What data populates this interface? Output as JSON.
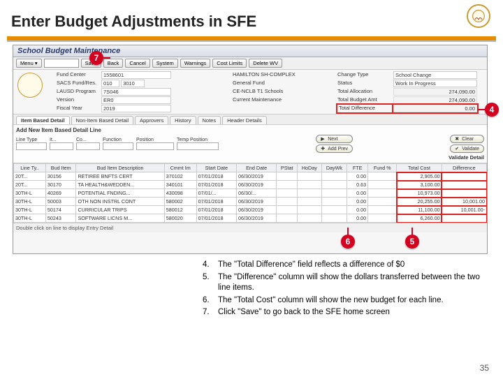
{
  "page": {
    "title": "Enter Budget Adjustments in SFE",
    "number": "35"
  },
  "accent_colors": {
    "orange": "#e68a00",
    "red": "#d40020",
    "logo_border": "#c99a2e"
  },
  "app": {
    "window_title": "School Budget Maintenance",
    "toolbar": {
      "menu": "Menu ▾",
      "search_value": "",
      "save": "Save",
      "back": "Back",
      "cancel": "Cancel",
      "system": "System",
      "warnings": "Warnings",
      "cost_limits": "Cost Limits",
      "delete_wv": "Delete WV"
    },
    "info": {
      "fund_center_lbl": "Fund Center",
      "fund_center": "1558601",
      "fund_center_desc": "HAMILTON SH-COMPLEX",
      "sacs_lbl": "SACS Fund/Res.",
      "sacs_a": "010",
      "sacs_b": "3010",
      "sacs_desc": "General Fund",
      "lausd_prog_lbl": "LAUSD Program",
      "lausd_prog": "7S046",
      "lausd_prog_desc": "CE-NCLB T1 Schools",
      "version_lbl": "Version",
      "version": "ER0",
      "version_desc": "Current Maintenance",
      "fiscal_year_lbl": "Fiscal Year",
      "fiscal_year": "2019",
      "change_type_lbl": "Change Type",
      "change_type": "School Change",
      "status_lbl": "Status",
      "status": "Work In Progress",
      "total_alloc_lbl": "Total Allocation",
      "total_alloc": "274,090.00",
      "total_budget_lbl": "Total Budget Amt",
      "total_budget": "274,090.00",
      "total_diff_lbl": "Total Difference",
      "total_diff": "0.00"
    },
    "tabs": [
      "Item Based Detail",
      "Non-Item Based Detail",
      "Approvers",
      "History",
      "Notes",
      "Header Details"
    ],
    "active_tab": 0,
    "addline": {
      "heading": "Add New Item Based Detail Line",
      "f_linetype": "Line Type",
      "f_it": "It...",
      "f_co": "Co...",
      "f_func": "Function",
      "f_position": "Position",
      "f_temp": "Temp Position",
      "b_next": "Next",
      "b_clear": "Clear",
      "b_addprev": "Add Prev",
      "b_validate": "Validate",
      "b_validatedetail": "Validate Detail"
    },
    "grid": {
      "cols": [
        "Line Ty..",
        "Bud Item",
        "Bud Item Description",
        "Cmmt Im",
        "Start Date",
        "End Date",
        "PStat",
        "HoDay",
        "DayWk",
        "FTE",
        "Fund %",
        "Total Cost",
        "Difference"
      ],
      "rows": [
        [
          "20T...",
          "30156",
          "RETIREE BNFTS CERT",
          "370102",
          "07/01/2018",
          "06/30/2019",
          "",
          "",
          "",
          "0.00",
          "",
          "2,905.00",
          ""
        ],
        [
          "20T...",
          "30170",
          "TA HEALTH&WEDDEN...",
          "340101",
          "07/01/2018",
          "06/30/2019",
          "",
          "",
          "",
          "0.63",
          "",
          "3,100.00",
          ""
        ],
        [
          "30TH-L",
          "40269",
          "POTENTIAL FNDING...",
          "430098",
          "07/01/...",
          "06/30/...",
          "",
          "",
          "",
          "0.00",
          "",
          "10,973.00",
          ""
        ],
        [
          "30TH-L",
          "50003",
          "OTH NON INSTRL CONT",
          "580002",
          "07/01/2018",
          "06/30/2019",
          "",
          "",
          "",
          "0.00",
          "",
          "20,255.00",
          "10,001.00"
        ],
        [
          "30TH-L",
          "50174",
          "CURRICULAR TRIPS",
          "580012",
          "07/01/2018",
          "06/30/2019",
          "",
          "",
          "",
          "0.00",
          "",
          "11,100.00",
          "10,001.00-"
        ],
        [
          "30TH-L",
          "50243",
          "SOFTWARE LICNS M...",
          "580020",
          "07/01/2018",
          "06/30/2019",
          "",
          "",
          "",
          "0.00",
          "",
          "6,260.00",
          ""
        ]
      ],
      "highlight_total_col": 11,
      "highlight_diff_col": 12
    },
    "footer_hint": "Double click on line to display Entry Detail"
  },
  "callouts": {
    "c4": "4",
    "c5": "5",
    "c6": "6",
    "c7": "7"
  },
  "notes": [
    {
      "n": "4.",
      "t": "The \"Total Difference\" field reflects a difference of $0"
    },
    {
      "n": "5.",
      "t": "The \"Difference\" column will show the dollars transferred between the two line items."
    },
    {
      "n": "6.",
      "t": "The \"Total Cost\" column will show the new budget for each line."
    },
    {
      "n": "7.",
      "t": "Click \"Save\" to go back to the SFE home screen"
    }
  ]
}
